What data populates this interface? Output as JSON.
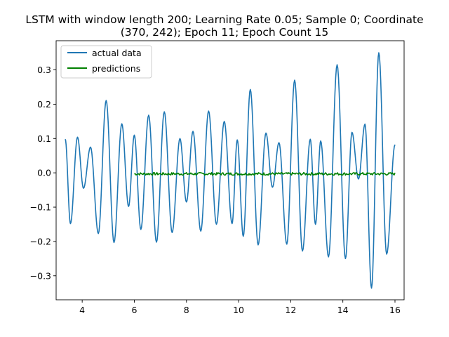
{
  "chart_data": {
    "type": "line",
    "title_lines": [
      "LSTM with window length 200; Learning Rate 0.05; Sample 0; Coordinate",
      "(370, 242); Epoch 11; Epoch Count 15"
    ],
    "xlabel": "",
    "ylabel": "",
    "xlim": [
      3.0,
      16.35
    ],
    "ylim": [
      -0.37,
      0.385
    ],
    "xticks": [
      4,
      6,
      8,
      10,
      12,
      14,
      16
    ],
    "yticks": [
      -0.3,
      -0.2,
      -0.1,
      0.0,
      0.1,
      0.2,
      0.3
    ],
    "ytick_labels": [
      "−0.3",
      "−0.2",
      "−0.1",
      "0.0",
      "0.1",
      "0.2",
      "0.3"
    ],
    "grid": false,
    "legend_position": "top-left",
    "series": [
      {
        "name": "actual data",
        "color": "#1f77b4",
        "style": "smooth",
        "extrema": [
          [
            3.35,
            0.098
          ],
          [
            3.55,
            -0.148
          ],
          [
            3.82,
            0.104
          ],
          [
            4.05,
            -0.045
          ],
          [
            4.32,
            0.075
          ],
          [
            4.62,
            -0.177
          ],
          [
            4.92,
            0.211
          ],
          [
            5.22,
            -0.203
          ],
          [
            5.52,
            0.143
          ],
          [
            5.78,
            -0.098
          ],
          [
            6.0,
            0.11
          ],
          [
            6.25,
            -0.165
          ],
          [
            6.55,
            0.168
          ],
          [
            6.85,
            -0.202
          ],
          [
            7.15,
            0.178
          ],
          [
            7.45,
            -0.174
          ],
          [
            7.75,
            0.1
          ],
          [
            8.0,
            -0.085
          ],
          [
            8.25,
            0.121
          ],
          [
            8.55,
            -0.17
          ],
          [
            8.85,
            0.18
          ],
          [
            9.15,
            -0.15
          ],
          [
            9.45,
            0.15
          ],
          [
            9.75,
            -0.148
          ],
          [
            9.95,
            0.096
          ],
          [
            10.18,
            -0.185
          ],
          [
            10.45,
            0.243
          ],
          [
            10.75,
            -0.21
          ],
          [
            11.05,
            0.116
          ],
          [
            11.3,
            -0.042
          ],
          [
            11.55,
            0.088
          ],
          [
            11.85,
            -0.208
          ],
          [
            12.15,
            0.27
          ],
          [
            12.45,
            -0.228
          ],
          [
            12.75,
            0.098
          ],
          [
            12.95,
            -0.15
          ],
          [
            13.15,
            0.093
          ],
          [
            13.45,
            -0.245
          ],
          [
            13.78,
            0.315
          ],
          [
            14.1,
            -0.25
          ],
          [
            14.35,
            0.118
          ],
          [
            14.6,
            -0.018
          ],
          [
            14.85,
            0.142
          ],
          [
            15.1,
            -0.336
          ],
          [
            15.38,
            0.35
          ],
          [
            15.68,
            -0.237
          ],
          [
            16.0,
            0.082
          ]
        ]
      },
      {
        "name": "predictions",
        "color": "#008000",
        "style": "noisy-flat",
        "x_range": [
          6.0,
          16.0
        ],
        "mean": -0.003,
        "noise_amplitude": 0.004
      }
    ]
  }
}
